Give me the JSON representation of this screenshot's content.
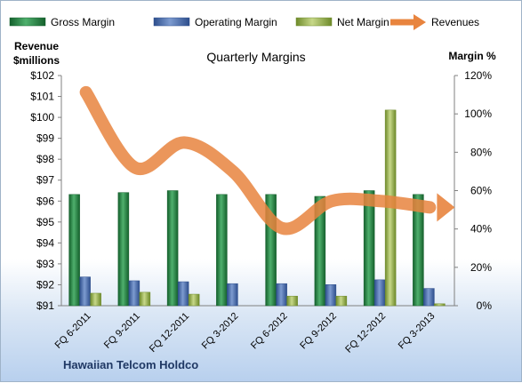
{
  "chart_data": {
    "type": "bar",
    "title": "Quarterly Margins",
    "left_axis_label": [
      "Revenue",
      "$millions"
    ],
    "right_axis_label": "Margin %",
    "left_ticks": [
      "$91",
      "$92",
      "$93",
      "$94",
      "$95",
      "$96",
      "$97",
      "$98",
      "$99",
      "$100",
      "$101",
      "$102"
    ],
    "right_ticks": [
      "0%",
      "20%",
      "40%",
      "60%",
      "80%",
      "100%",
      "120%"
    ],
    "ylim_left": [
      91,
      102
    ],
    "ylim_right": [
      0,
      1.2
    ],
    "categories": [
      "FQ 6-2011",
      "FQ 9-2011",
      "FQ 12-2011",
      "FQ 3-2012",
      "FQ 6-2012",
      "FQ 9-2012",
      "FQ 12-2012",
      "FQ 3-2013"
    ],
    "series": [
      {
        "name": "Gross Margin",
        "type": "bar",
        "axis": "right",
        "color": "#1e7a3e",
        "values": [
          0.58,
          0.59,
          0.6,
          0.58,
          0.58,
          0.57,
          0.6,
          0.58
        ]
      },
      {
        "name": "Operating Margin",
        "type": "bar",
        "axis": "right",
        "color": "#3f66a8",
        "values": [
          0.15,
          0.13,
          0.125,
          0.115,
          0.115,
          0.11,
          0.135,
          0.09
        ]
      },
      {
        "name": "Net Margin",
        "type": "bar",
        "axis": "right",
        "color": "#98b04a",
        "values": [
          0.065,
          0.07,
          0.06,
          0.0,
          0.05,
          0.05,
          1.02,
          0.01
        ]
      },
      {
        "name": "Revenues",
        "type": "line",
        "axis": "left",
        "color": "#e8843e",
        "values": [
          101.2,
          97.6,
          98.8,
          97.4,
          94.7,
          96.0,
          96.0,
          95.7
        ]
      }
    ],
    "legend_position": "top",
    "grid": false
  },
  "footer": "Hawaiian Telcom Holdco"
}
